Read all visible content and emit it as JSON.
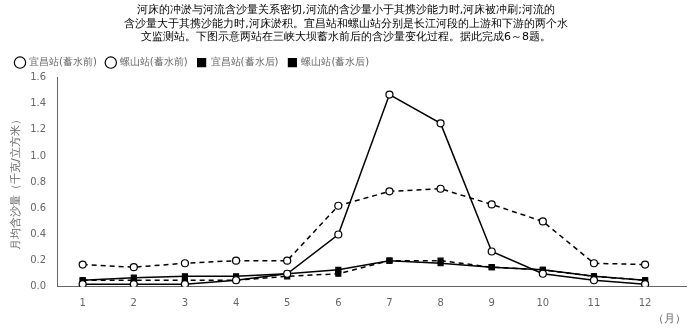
{
  "chart_data": {
    "type": "line",
    "title": [
      "河床的冲淤与河流含沙量关系密切,河流的含沙量小于其携沙能力时,河床被冲刷;河流的",
      "含沙量大于其携沙能力时,河床淤积。宜昌站和螺山站分别是长江河段的上游和下游的两个水",
      "文监测站。下图示意两站在三峡大坝蓄水前后的含沙量变化过程。据此完成6～8题。"
    ],
    "xlabel": "（月）",
    "ylabel": "月均含沙量（千克/立方米）",
    "x": [
      1,
      2,
      3,
      4,
      5,
      6,
      7,
      8,
      9,
      10,
      11,
      12
    ],
    "xlim": [
      0.5,
      12.8
    ],
    "xticks": [
      1,
      2,
      3,
      4,
      5,
      6,
      7,
      8,
      9,
      10,
      11,
      12
    ],
    "ylim": [
      0,
      1.6
    ],
    "yticks": [
      {
        "value": 0,
        "label": "0.0"
      },
      0.2,
      0.4,
      0.6,
      0.8,
      {
        "value": 1.0,
        "label": "1.0"
      },
      1.2,
      1.4,
      1.6
    ],
    "grid": false,
    "legend": "upper left",
    "series": [
      {
        "name": "宜昌站(蓄水前)",
        "color": "black",
        "marker": "circle",
        "line_style": "solid",
        "values": [
          0.02,
          0.02,
          0.02,
          0.05,
          0.1,
          0.4,
          1.47,
          1.25,
          0.27,
          0.1,
          0.05,
          0.02
        ]
      },
      {
        "name": "螺山站(蓄水前)",
        "color": "black",
        "marker": "circle",
        "line_style": "dashed",
        "values": [
          0.17,
          0.15,
          0.18,
          0.2,
          0.2,
          0.62,
          0.73,
          0.75,
          0.63,
          0.5,
          0.18,
          0.17
        ]
      },
      {
        "name": "宜昌站(蓄水后)",
        "color": "black",
        "marker": "square",
        "line_style": "solid",
        "values": [
          0.05,
          0.07,
          0.08,
          0.08,
          0.1,
          0.13,
          0.2,
          0.18,
          0.15,
          0.13,
          0.08,
          0.05
        ]
      },
      {
        "name": "螺山站(蓄水后)",
        "color": "black",
        "marker": "square",
        "line_style": "dashed",
        "values": [
          0.05,
          0.05,
          0.05,
          0.05,
          0.08,
          0.1,
          0.2,
          0.2,
          0.15,
          0.13,
          0.08,
          0.05
        ]
      }
    ]
  }
}
